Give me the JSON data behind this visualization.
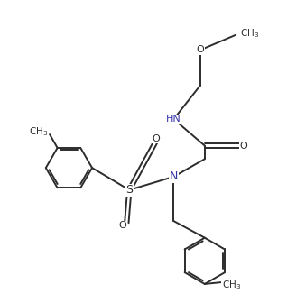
{
  "bg_color": "#ffffff",
  "line_color": "#2c2c2c",
  "N_color": "#3333aa",
  "O_color": "#2c2c2c",
  "S_color": "#2c2c2c",
  "line_width": 1.4,
  "figsize": [
    3.18,
    3.26
  ],
  "dpi": 100,
  "xlim": [
    0,
    10
  ],
  "ylim": [
    0,
    10.25
  ]
}
